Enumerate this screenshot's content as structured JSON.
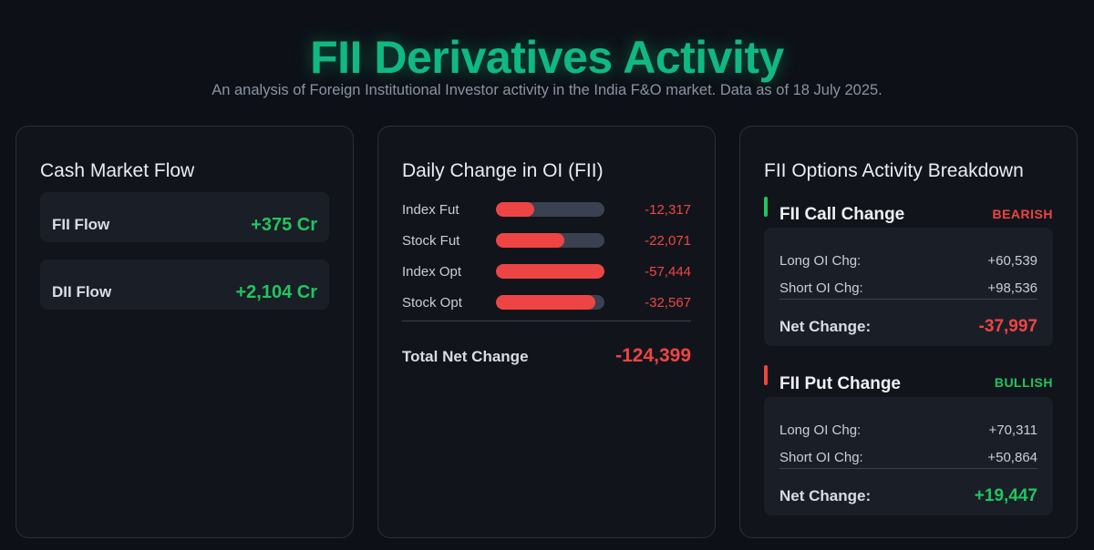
{
  "header": {
    "title": "FII Derivatives Activity",
    "subtitle": "An analysis of Foreign Institutional Investor activity in the India F&O market. Data as of 18 July 2025."
  },
  "cash_market": {
    "title": "Cash Market Flow",
    "items": [
      {
        "label": "FII Flow",
        "value": "+375 Cr"
      },
      {
        "label": "DII Flow",
        "value": "+2,104 Cr"
      }
    ]
  },
  "oi_change": {
    "title": "Daily Change in OI (FII)",
    "rows": [
      {
        "label": "Index Fut",
        "value": "-12,317",
        "fill": 0.35
      },
      {
        "label": "Stock Fut",
        "value": "-22,071",
        "fill": 0.63
      },
      {
        "label": "Index Opt",
        "value": "-57,444",
        "fill": 1.0
      },
      {
        "label": "Stock Opt",
        "value": "-32,567",
        "fill": 0.92
      }
    ],
    "total_label": "Total Net Change",
    "total_value": "-124,399"
  },
  "options": {
    "title": "FII Options Activity Breakdown",
    "call": {
      "title": "FII Call Change",
      "badge": "BEARISH",
      "long_label": "Long OI Chg:",
      "long_value": "+60,539",
      "short_label": "Short OI Chg:",
      "short_value": "+98,536",
      "net_label": "Net Change:",
      "net_value": "-37,997"
    },
    "put": {
      "title": "FII Put Change",
      "badge": "BULLISH",
      "long_label": "Long OI Chg:",
      "long_value": "+70,311",
      "short_label": "Short OI Chg:",
      "short_value": "+50,864",
      "net_label": "Net Change:",
      "net_value": "+19,447"
    }
  },
  "colors": {
    "accent": "#10b981",
    "positive": "#22c55e",
    "negative": "#ef4444",
    "background": "#0d1117",
    "card": "#11151b"
  }
}
